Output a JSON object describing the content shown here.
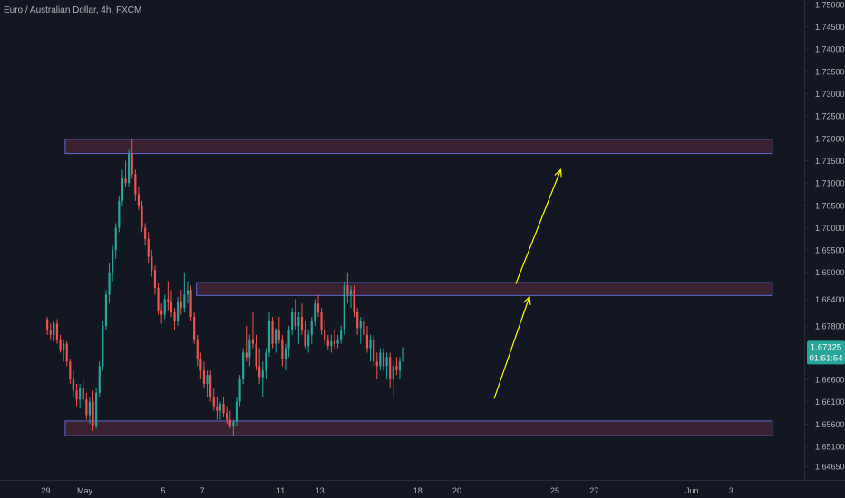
{
  "header": {
    "symbol_title": "Euro / Australian Dollar, 4h, FXCM"
  },
  "price_badge": {
    "price": "1.67325",
    "countdown": "01:51:54"
  },
  "colors": {
    "background": "#131722",
    "up": "#26a69a",
    "down": "#ef5350",
    "axis_text": "#b2b5be",
    "grid_line": "#2a2e39",
    "zone_fill": "#4a2438",
    "zone_border": "#5b6bd6",
    "arrow": "#ffff00",
    "badge": "#26a69a"
  },
  "chart_data": {
    "type": "candlestick",
    "title": "Euro / Australian Dollar, 4h, FXCM",
    "y_ticks": [
      "1.75000",
      "1.74500",
      "1.74000",
      "1.73500",
      "1.73000",
      "1.72500",
      "1.72000",
      "1.71500",
      "1.71000",
      "1.70500",
      "1.70000",
      "1.69500",
      "1.69000",
      "1.68400",
      "1.67800",
      "1.67325",
      "1.66600",
      "1.66100",
      "1.65600",
      "1.65100",
      "1.64650"
    ],
    "x_ticks": [
      {
        "label": "29",
        "day": 0
      },
      {
        "label": "May",
        "day": 2
      },
      {
        "label": "5",
        "day": 6
      },
      {
        "label": "7",
        "day": 8
      },
      {
        "label": "11",
        "day": 12
      },
      {
        "label": "13",
        "day": 14
      },
      {
        "label": "18",
        "day": 19
      },
      {
        "label": "20",
        "day": 21
      },
      {
        "label": "25",
        "day": 26
      },
      {
        "label": "27",
        "day": 28
      },
      {
        "label": "Jun",
        "day": 33
      },
      {
        "label": "3",
        "day": 35
      }
    ],
    "ylim": [
      1.6435,
      1.751
    ],
    "x_range_days": [
      -2.33,
      38.73
    ],
    "candles_per_day": 6,
    "last_price": 1.67325,
    "zones": [
      {
        "name": "resistance",
        "y_top": 1.7198,
        "y_bottom": 1.7166,
        "start_day": 1.0,
        "end_day": 37.1
      },
      {
        "name": "mid",
        "y_top": 1.6877,
        "y_bottom": 1.6848,
        "start_day": 7.7,
        "end_day": 37.1
      },
      {
        "name": "support",
        "y_top": 1.6567,
        "y_bottom": 1.6534,
        "start_day": 1.0,
        "end_day": 37.1
      }
    ],
    "arrows": [
      {
        "from": {
          "day": 22.9,
          "price": 1.6617
        },
        "to": {
          "day": 24.7,
          "price": 1.6845
        }
      },
      {
        "from": {
          "day": 24.0,
          "price": 1.6874
        },
        "to": {
          "day": 26.3,
          "price": 1.713
        }
      }
    ],
    "ohlc": [
      [
        1.6795,
        1.68,
        1.676,
        1.677
      ],
      [
        1.677,
        1.6785,
        1.675,
        1.676
      ],
      [
        1.676,
        1.679,
        1.6745,
        1.6785
      ],
      [
        1.6785,
        1.6795,
        1.674,
        1.675
      ],
      [
        1.675,
        1.676,
        1.672,
        1.6725
      ],
      [
        1.6725,
        1.675,
        1.67,
        1.674
      ],
      [
        1.674,
        1.6745,
        1.669,
        1.67
      ],
      [
        1.67,
        1.6705,
        1.665,
        1.666
      ],
      [
        1.666,
        1.668,
        1.662,
        1.6635
      ],
      [
        1.6635,
        1.665,
        1.66,
        1.6615
      ],
      [
        1.6615,
        1.665,
        1.6595,
        1.664
      ],
      [
        1.664,
        1.666,
        1.661,
        1.6615
      ],
      [
        1.6615,
        1.663,
        1.657,
        1.658
      ],
      [
        1.658,
        1.662,
        1.656,
        1.661
      ],
      [
        1.661,
        1.6635,
        1.6545,
        1.6555
      ],
      [
        1.6555,
        1.664,
        1.655,
        1.663
      ],
      [
        1.663,
        1.67,
        1.662,
        1.669
      ],
      [
        1.669,
        1.679,
        1.668,
        1.678
      ],
      [
        1.678,
        1.686,
        1.677,
        1.685
      ],
      [
        1.685,
        1.692,
        1.683,
        1.69
      ],
      [
        1.69,
        1.696,
        1.688,
        1.695
      ],
      [
        1.695,
        1.701,
        1.693,
        1.7
      ],
      [
        1.7,
        1.707,
        1.699,
        1.706
      ],
      [
        1.706,
        1.713,
        1.705,
        1.711
      ],
      [
        1.711,
        1.715,
        1.709,
        1.71
      ],
      [
        1.71,
        1.7175,
        1.709,
        1.7165
      ],
      [
        1.7165,
        1.72,
        1.711,
        1.712
      ],
      [
        1.712,
        1.713,
        1.706,
        1.7075
      ],
      [
        1.7075,
        1.709,
        1.704,
        1.705
      ],
      [
        1.705,
        1.706,
        1.699,
        1.7
      ],
      [
        1.7,
        1.701,
        1.696,
        1.6975
      ],
      [
        1.6975,
        1.699,
        1.692,
        1.6935
      ],
      [
        1.6935,
        1.695,
        1.689,
        1.6905
      ],
      [
        1.6905,
        1.6915,
        1.685,
        1.6865
      ],
      [
        1.6865,
        1.6875,
        1.6805,
        1.6815
      ],
      [
        1.6815,
        1.683,
        1.6785,
        1.6805
      ],
      [
        1.6805,
        1.685,
        1.6795,
        1.684
      ],
      [
        1.684,
        1.688,
        1.6815,
        1.6835
      ],
      [
        1.6835,
        1.686,
        1.68,
        1.681
      ],
      [
        1.681,
        1.682,
        1.677,
        1.679
      ],
      [
        1.679,
        1.6845,
        1.678,
        1.6835
      ],
      [
        1.6835,
        1.686,
        1.6805,
        1.682
      ],
      [
        1.682,
        1.69,
        1.681,
        1.685
      ],
      [
        1.685,
        1.688,
        1.683,
        1.686
      ],
      [
        1.686,
        1.687,
        1.679,
        1.68
      ],
      [
        1.68,
        1.681,
        1.674,
        1.675
      ],
      [
        1.675,
        1.676,
        1.669,
        1.6705
      ],
      [
        1.6705,
        1.672,
        1.666,
        1.668
      ],
      [
        1.668,
        1.67,
        1.664,
        1.665
      ],
      [
        1.665,
        1.668,
        1.662,
        1.667
      ],
      [
        1.667,
        1.668,
        1.661,
        1.662
      ],
      [
        1.662,
        1.664,
        1.659,
        1.66
      ],
      [
        1.66,
        1.662,
        1.657,
        1.659
      ],
      [
        1.659,
        1.661,
        1.657,
        1.6605
      ],
      [
        1.6605,
        1.662,
        1.6575,
        1.6585
      ],
      [
        1.6585,
        1.66,
        1.656,
        1.657
      ],
      [
        1.657,
        1.659,
        1.655,
        1.6555
      ],
      [
        1.6555,
        1.657,
        1.6535,
        1.6565
      ],
      [
        1.6565,
        1.662,
        1.6555,
        1.661
      ],
      [
        1.661,
        1.667,
        1.66,
        1.666
      ],
      [
        1.666,
        1.673,
        1.665,
        1.672
      ],
      [
        1.672,
        1.678,
        1.67,
        1.671
      ],
      [
        1.671,
        1.676,
        1.669,
        1.675
      ],
      [
        1.675,
        1.681,
        1.673,
        1.674
      ],
      [
        1.674,
        1.676,
        1.668,
        1.669
      ],
      [
        1.669,
        1.673,
        1.665,
        1.6665
      ],
      [
        1.6665,
        1.67,
        1.662,
        1.668
      ],
      [
        1.668,
        1.673,
        1.666,
        1.672
      ],
      [
        1.672,
        1.681,
        1.671,
        1.679
      ],
      [
        1.679,
        1.68,
        1.673,
        1.674
      ],
      [
        1.674,
        1.6775,
        1.672,
        1.677
      ],
      [
        1.677,
        1.68,
        1.674,
        1.675
      ],
      [
        1.675,
        1.676,
        1.669,
        1.6705
      ],
      [
        1.6705,
        1.674,
        1.668,
        1.673
      ],
      [
        1.673,
        1.678,
        1.671,
        1.677
      ],
      [
        1.677,
        1.682,
        1.676,
        1.681
      ],
      [
        1.681,
        1.684,
        1.677,
        1.678
      ],
      [
        1.678,
        1.681,
        1.674,
        1.68
      ],
      [
        1.68,
        1.683,
        1.676,
        1.677
      ],
      [
        1.677,
        1.679,
        1.673,
        1.6735
      ],
      [
        1.6735,
        1.677,
        1.672,
        1.676
      ],
      [
        1.676,
        1.68,
        1.674,
        1.679
      ],
      [
        1.679,
        1.684,
        1.678,
        1.683
      ],
      [
        1.683,
        1.685,
        1.68,
        1.681
      ],
      [
        1.681,
        1.682,
        1.676,
        1.677
      ],
      [
        1.677,
        1.679,
        1.674,
        1.675
      ],
      [
        1.675,
        1.676,
        1.6725,
        1.6735
      ],
      [
        1.6735,
        1.676,
        1.672,
        1.6745
      ],
      [
        1.6745,
        1.677,
        1.673,
        1.674
      ],
      [
        1.674,
        1.676,
        1.673,
        1.675
      ],
      [
        1.675,
        1.678,
        1.674,
        1.677
      ],
      [
        1.677,
        1.688,
        1.676,
        1.687
      ],
      [
        1.687,
        1.69,
        1.683,
        1.685
      ],
      [
        1.685,
        1.687,
        1.682,
        1.686
      ],
      [
        1.686,
        1.687,
        1.68,
        1.681
      ],
      [
        1.681,
        1.682,
        1.676,
        1.6775
      ],
      [
        1.6775,
        1.68,
        1.674,
        1.679
      ],
      [
        1.679,
        1.68,
        1.675,
        1.676
      ],
      [
        1.676,
        1.678,
        1.672,
        1.673
      ],
      [
        1.673,
        1.676,
        1.67,
        1.675
      ],
      [
        1.675,
        1.676,
        1.669,
        1.67
      ],
      [
        1.67,
        1.672,
        1.666,
        1.669
      ],
      [
        1.669,
        1.673,
        1.668,
        1.672
      ],
      [
        1.672,
        1.673,
        1.668,
        1.669
      ],
      [
        1.669,
        1.672,
        1.666,
        1.671
      ],
      [
        1.671,
        1.672,
        1.664,
        1.666
      ],
      [
        1.666,
        1.67,
        1.662,
        1.669
      ],
      [
        1.669,
        1.671,
        1.667,
        1.668
      ],
      [
        1.668,
        1.671,
        1.666,
        1.67
      ],
      [
        1.67,
        1.6735,
        1.669,
        1.6732
      ]
    ]
  }
}
